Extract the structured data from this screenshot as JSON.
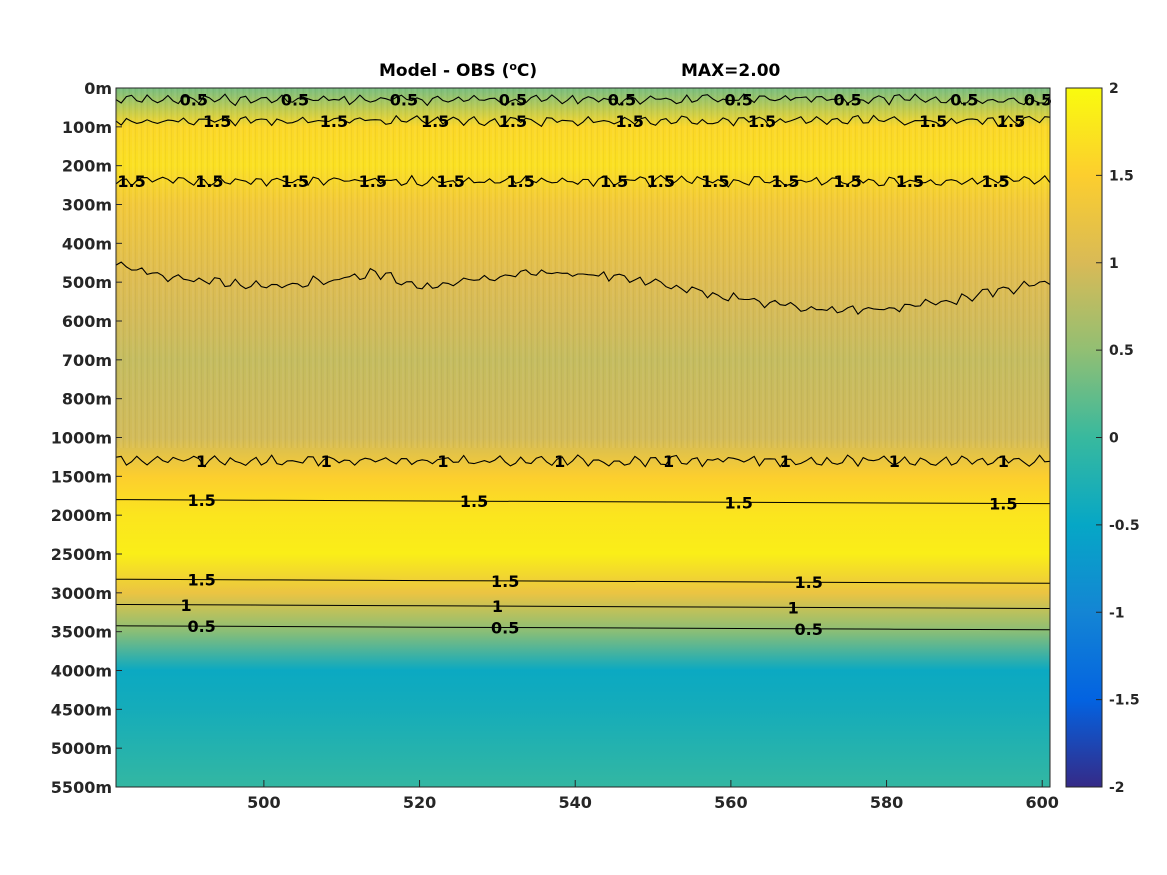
{
  "title": {
    "left": "Model - OBS (",
    "superscript": "o",
    "left_tail": "C)",
    "right": "MAX=2.00"
  },
  "chart_data": {
    "type": "heatmap",
    "title": "Model - OBS (oC)    MAX=2.00",
    "xlim": [
      481,
      601
    ],
    "x_ticks": [
      500,
      520,
      540,
      560,
      580,
      600
    ],
    "y_ticks": [
      "0m",
      "100m",
      "200m",
      "300m",
      "400m",
      "500m",
      "600m",
      "700m",
      "800m",
      "1000m",
      "1500m",
      "2000m",
      "2500m",
      "3000m",
      "3500m",
      "4000m",
      "4500m",
      "5000m",
      "5500m"
    ],
    "colorbar": {
      "range": [
        -2,
        2
      ],
      "ticks": [
        "2",
        "1.5",
        "1",
        "0.5",
        "0",
        "-0.5",
        "-1",
        "-1.5",
        "-2"
      ],
      "colormap": "parula",
      "colors": [
        "#352a87",
        "#0363e1",
        "#1485d4",
        "#06a7c6",
        "#38b99e",
        "#92bf73",
        "#d9ba56",
        "#fcce2e",
        "#f9fb0e"
      ]
    },
    "depth_profile": [
      {
        "depth": "0m",
        "value": 0.35
      },
      {
        "depth": "100m",
        "value": 1.6
      },
      {
        "depth": "200m",
        "value": 1.7
      },
      {
        "depth": "300m",
        "value": 1.35
      },
      {
        "depth": "400m",
        "value": 1.2
      },
      {
        "depth": "500m",
        "value": 1.05
      },
      {
        "depth": "600m",
        "value": 0.95
      },
      {
        "depth": "700m",
        "value": 0.85
      },
      {
        "depth": "800m",
        "value": 0.9
      },
      {
        "depth": "1000m",
        "value": 0.95
      },
      {
        "depth": "1500m",
        "value": 1.5
      },
      {
        "depth": "2000m",
        "value": 1.75
      },
      {
        "depth": "2500m",
        "value": 1.85
      },
      {
        "depth": "3000m",
        "value": 1.25
      },
      {
        "depth": "3500m",
        "value": 0.45
      },
      {
        "depth": "4000m",
        "value": -0.45
      },
      {
        "depth": "4500m",
        "value": -0.35
      },
      {
        "depth": "5000m",
        "value": -0.2
      },
      {
        "depth": "5500m",
        "value": -0.05
      }
    ],
    "contours": [
      {
        "level": "0.5",
        "depth_level": 0.3,
        "labels_x": [
          491,
          504,
          518,
          532,
          546,
          561,
          575,
          590,
          604
        ],
        "wiggly": true
      },
      {
        "level": "1.5",
        "depth_level": 0.85,
        "labels_x": [
          494,
          509,
          522,
          532,
          547,
          564,
          586,
          596
        ],
        "wiggly": true
      },
      {
        "level": "1.5",
        "depth_level": 2.4,
        "labels_x": [
          483,
          493,
          504,
          514,
          524,
          533,
          545,
          551,
          558,
          567,
          575,
          583,
          594
        ],
        "wiggly": true
      },
      {
        "level": "1",
        "depth_level": 4.6,
        "labels_x": [],
        "wiggly": true
      },
      {
        "level": "1",
        "depth_level": 9.6,
        "labels_x": [
          492,
          508,
          523,
          538,
          552,
          567,
          581,
          595
        ],
        "wiggly": true
      },
      {
        "level": "1.5",
        "depth_level": 10.6,
        "labels_x": [
          492,
          527,
          561,
          595
        ],
        "wiggly": false
      },
      {
        "level": "1.5",
        "depth_level": 12.65,
        "labels_x": [
          492,
          531,
          570
        ],
        "wiggly": false
      },
      {
        "level": "1",
        "depth_level": 13.3,
        "labels_x": [
          490,
          530,
          568
        ],
        "wiggly": false
      },
      {
        "level": "0.5",
        "depth_level": 13.85,
        "labels_x": [
          492,
          531,
          570
        ],
        "wiggly": false
      }
    ]
  }
}
